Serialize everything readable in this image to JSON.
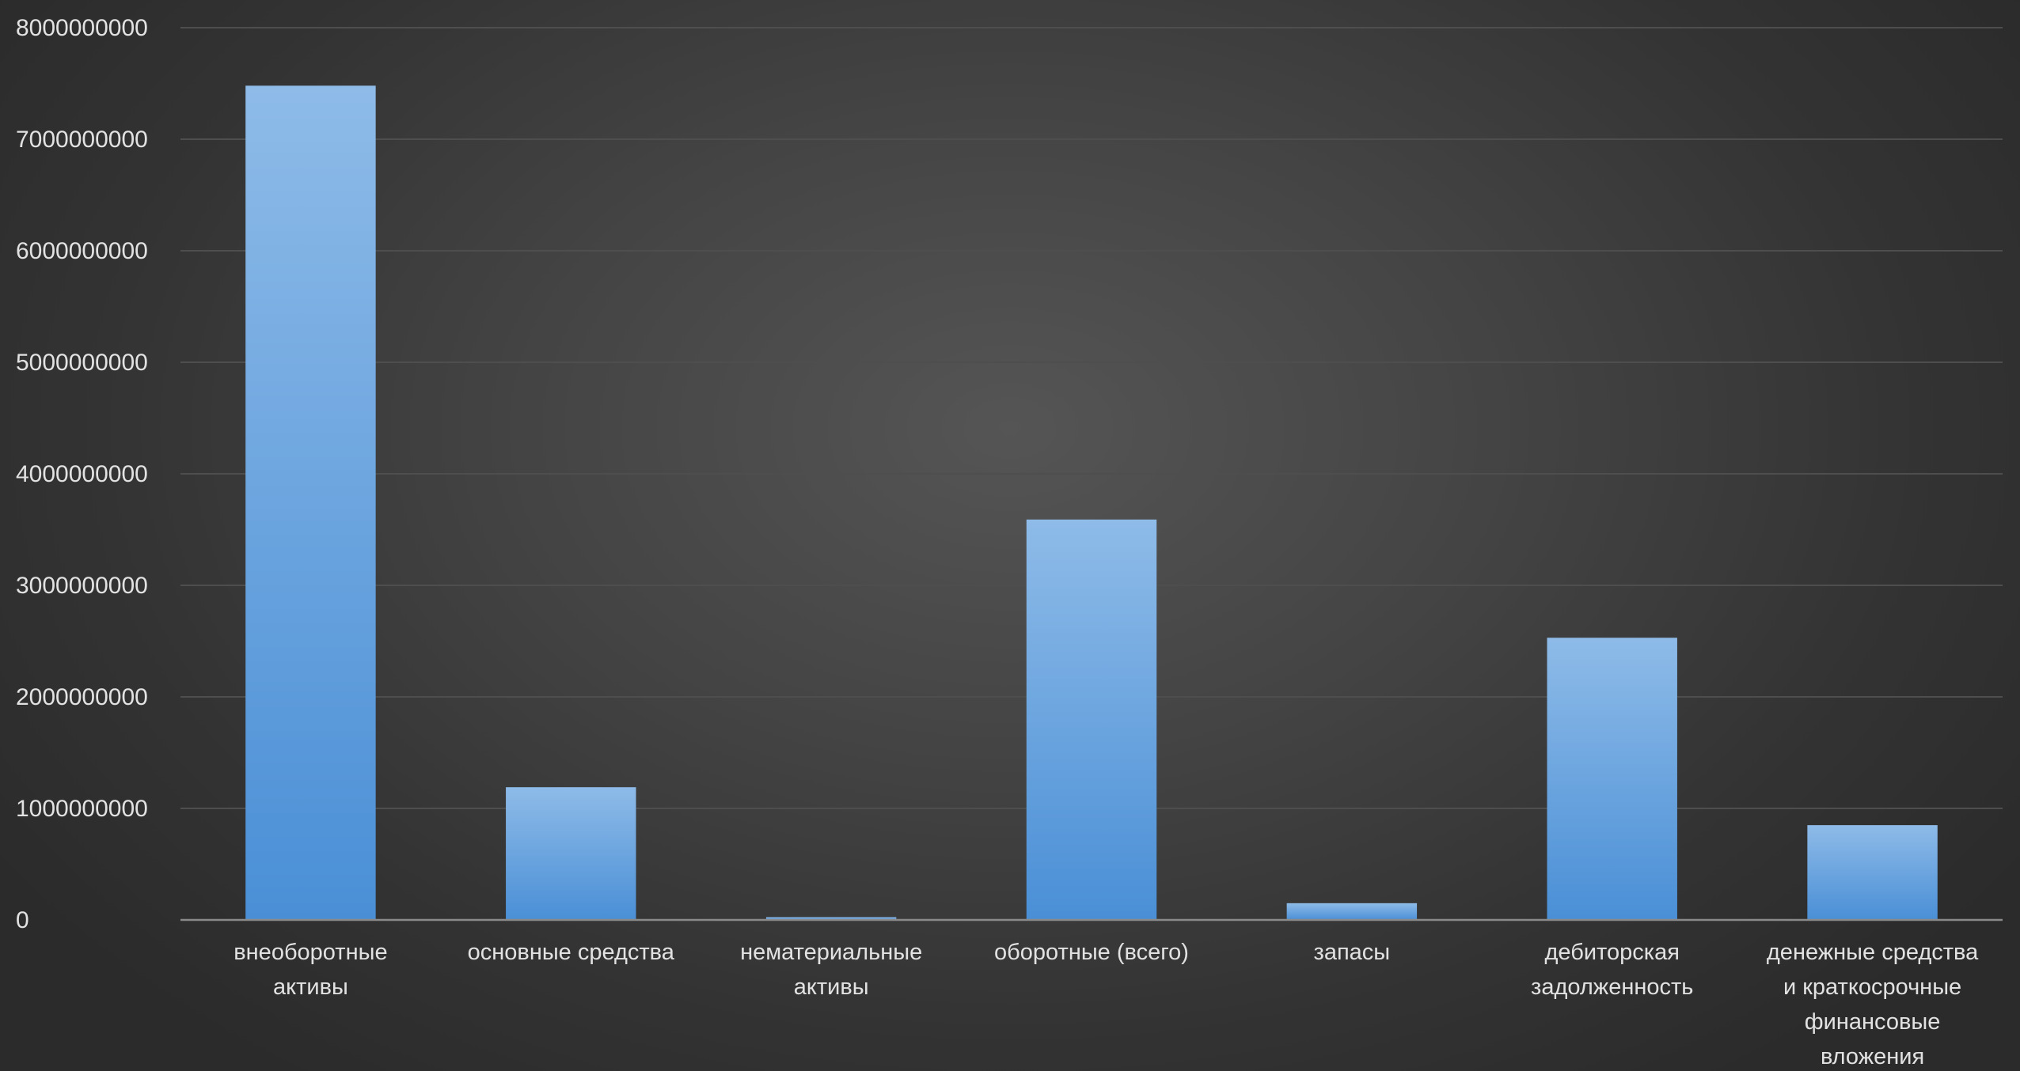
{
  "chart_data": {
    "type": "bar",
    "title": "",
    "xlabel": "",
    "ylabel": "",
    "ylim": [
      0,
      8000000000
    ],
    "yticks": [
      0,
      1000000000,
      2000000000,
      3000000000,
      4000000000,
      5000000000,
      6000000000,
      7000000000,
      8000000000
    ],
    "ytick_labels": [
      "0",
      "1000000000",
      "2000000000",
      "3000000000",
      "4000000000",
      "5000000000",
      "6000000000",
      "7000000000",
      "8000000000"
    ],
    "grid": true,
    "legend": "none",
    "categories": [
      [
        "внеоборотные",
        "активы"
      ],
      [
        "основные средства"
      ],
      [
        "нематериальные",
        "активы"
      ],
      [
        "оборотные (всего)"
      ],
      [
        "запасы"
      ],
      [
        "дебиторская",
        "задолженность"
      ],
      [
        "денежные средства",
        "и краткосрочные",
        "финансовые",
        "вложения"
      ]
    ],
    "values": [
      7480000000,
      1190000000,
      25000000,
      3590000000,
      150000000,
      2530000000,
      850000000
    ],
    "colors": {
      "bar_top": "#8ebbe8",
      "bar_bottom": "#4a8fd6",
      "grid": "#4e4e4e",
      "axis": "#8a8a8a",
      "text": "#e2e2e2"
    }
  }
}
